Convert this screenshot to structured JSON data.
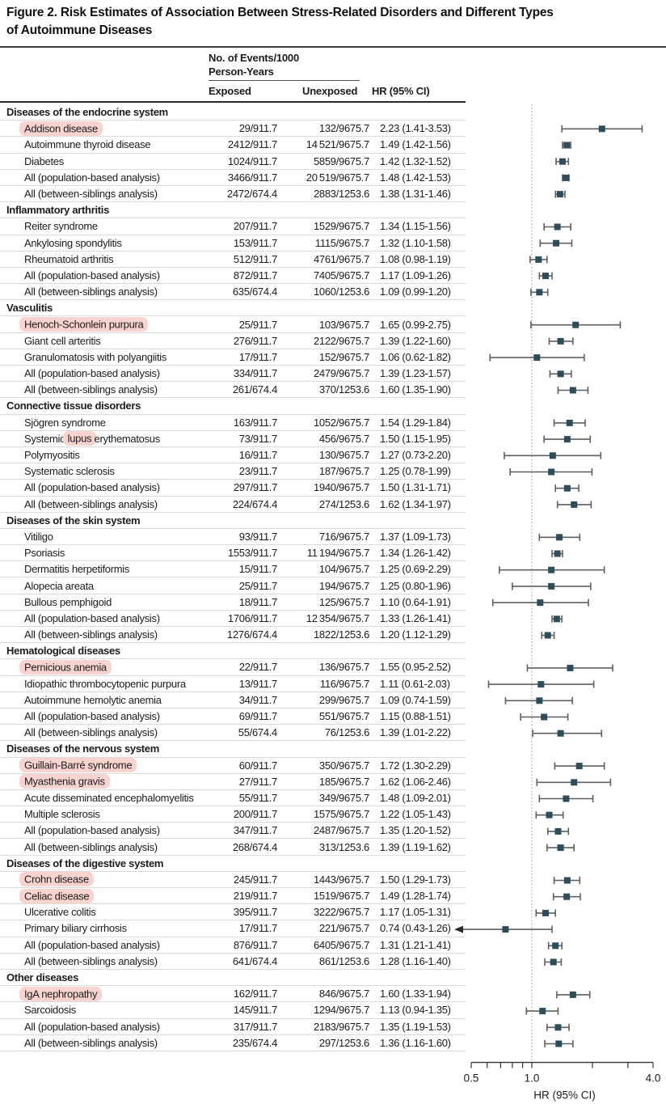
{
  "figure": {
    "title_line1": "Figure 2. Risk Estimates of Association Between Stress-Related Disorders and Different Types",
    "title_line2": "of Autoimmune Diseases"
  },
  "table_header": {
    "events_group_line1": "No. of Events/1000",
    "events_group_line2": "Person-Years",
    "exposed": "Exposed",
    "unexposed": "Unexposed",
    "hr": "HR (95% CI)"
  },
  "axis": {
    "xlabel": "HR (95% CI)",
    "scale": "log",
    "min": 0.5,
    "max": 4.0,
    "reference": 1.0,
    "ticks": [
      {
        "v": 0.5,
        "label": "0.5"
      },
      {
        "v": 0.6
      },
      {
        "v": 0.7
      },
      {
        "v": 0.8
      },
      {
        "v": 0.9
      },
      {
        "v": 1.0,
        "label": "1.0"
      },
      {
        "v": 2.0
      },
      {
        "v": 3.0
      },
      {
        "v": 4.0,
        "label": "4.0"
      }
    ]
  },
  "colors": {
    "marker": "#2e4d5a",
    "whisker": "#5f5f5f",
    "arrow": "#2a2a2a",
    "reference_line": "#9a9a9a",
    "axis": "#333333",
    "highlight": "#f8d3cf",
    "row_rule": "#dadada",
    "text": "#1c1c1c"
  },
  "chart_data": {
    "type": "forest",
    "sections": [
      {
        "title": "Diseases of the endocrine system",
        "rows": [
          {
            "label": "Addison disease",
            "highlight": true,
            "exposed": "29/911.7",
            "unexposed": "132/9675.7",
            "hr_text": "2.23 (1.41-3.53)",
            "hr": 2.23,
            "lo": 1.41,
            "hi": 3.53
          },
          {
            "label": "Autoimmune thyroid disease",
            "exposed": "2412/911.7",
            "unexposed": "14 521/9675.7",
            "hr_text": "1.49 (1.42-1.56)",
            "hr": 1.49,
            "lo": 1.42,
            "hi": 1.56
          },
          {
            "label": "Diabetes",
            "exposed": "1024/911.7",
            "unexposed": "5859/9675.7",
            "hr_text": "1.42 (1.32-1.52)",
            "hr": 1.42,
            "lo": 1.32,
            "hi": 1.52
          },
          {
            "label": "All (population-based analysis)",
            "exposed": "3466/911.7",
            "unexposed": "20 519/9675.7",
            "hr_text": "1.48 (1.42-1.53)",
            "hr": 1.48,
            "lo": 1.42,
            "hi": 1.53
          },
          {
            "label": "All (between-siblings analysis)",
            "exposed": "2472/674.4",
            "unexposed": "2883/1253.6",
            "hr_text": "1.38 (1.31-1.46)",
            "hr": 1.38,
            "lo": 1.31,
            "hi": 1.46
          }
        ]
      },
      {
        "title": "Inflammatory arthritis",
        "rows": [
          {
            "label": "Reiter syndrome",
            "exposed": "207/911.7",
            "unexposed": "1529/9675.7",
            "hr_text": "1.34 (1.15-1.56)",
            "hr": 1.34,
            "lo": 1.15,
            "hi": 1.56
          },
          {
            "label": "Ankylosing spondylitis",
            "exposed": "153/911.7",
            "unexposed": "1115/9675.7",
            "hr_text": "1.32 (1.10-1.58)",
            "hr": 1.32,
            "lo": 1.1,
            "hi": 1.58
          },
          {
            "label": "Rheumatoid arthritis",
            "exposed": "512/911.7",
            "unexposed": "4761/9675.7",
            "hr_text": "1.08 (0.98-1.19)",
            "hr": 1.08,
            "lo": 0.98,
            "hi": 1.19
          },
          {
            "label": "All (population-based analysis)",
            "exposed": "872/911.7",
            "unexposed": "7405/9675.7",
            "hr_text": "1.17 (1.09-1.26)",
            "hr": 1.17,
            "lo": 1.09,
            "hi": 1.26
          },
          {
            "label": "All (between-siblings analysis)",
            "exposed": "635/674.4",
            "unexposed": "1060/1253.6",
            "hr_text": "1.09 (0.99-1.20)",
            "hr": 1.09,
            "lo": 0.99,
            "hi": 1.2
          }
        ]
      },
      {
        "title": "Vasculitis",
        "rows": [
          {
            "label": "Henoch-Schonlein purpura",
            "highlight": true,
            "exposed": "25/911.7",
            "unexposed": "103/9675.7",
            "hr_text": "1.65 (0.99-2.75)",
            "hr": 1.65,
            "lo": 0.99,
            "hi": 2.75
          },
          {
            "label": "Giant cell arteritis",
            "exposed": "276/911.7",
            "unexposed": "2122/9675.7",
            "hr_text": "1.39 (1.22-1.60)",
            "hr": 1.39,
            "lo": 1.22,
            "hi": 1.6
          },
          {
            "label": "Granulomatosis with polyangiitis",
            "exposed": "17/911.7",
            "unexposed": "152/9675.7",
            "hr_text": "1.06 (0.62-1.82)",
            "hr": 1.06,
            "lo": 0.62,
            "hi": 1.82
          },
          {
            "label": "All (population-based analysis)",
            "exposed": "334/911.7",
            "unexposed": "2479/9675.7",
            "hr_text": "1.39 (1.23-1.57)",
            "hr": 1.39,
            "lo": 1.23,
            "hi": 1.57
          },
          {
            "label": "All (between-siblings analysis)",
            "exposed": "261/674.4",
            "unexposed": "370/1253.6",
            "hr_text": "1.60 (1.35-1.90)",
            "hr": 1.6,
            "lo": 1.35,
            "hi": 1.9
          }
        ]
      },
      {
        "title": "Connective tissue disorders",
        "rows": [
          {
            "label": "Sjögren syndrome",
            "exposed": "163/911.7",
            "unexposed": "1052/9675.7",
            "hr_text": "1.54 (1.29-1.84)",
            "hr": 1.54,
            "lo": 1.29,
            "hi": 1.84
          },
          {
            "label": "Systemic lupus erythematosus",
            "highlight_word": "lupus",
            "exposed": "73/911.7",
            "unexposed": "456/9675.7",
            "hr_text": "1.50 (1.15-1.95)",
            "hr": 1.5,
            "lo": 1.15,
            "hi": 1.95
          },
          {
            "label": "Polymyositis",
            "exposed": "16/911.7",
            "unexposed": "130/9675.7",
            "hr_text": "1.27 (0.73-2.20)",
            "hr": 1.27,
            "lo": 0.73,
            "hi": 2.2
          },
          {
            "label": "Systematic sclerosis",
            "exposed": "23/911.7",
            "unexposed": "187/9675.7",
            "hr_text": "1.25 (0.78-1.99)",
            "hr": 1.25,
            "lo": 0.78,
            "hi": 1.99
          },
          {
            "label": "All (population-based analysis)",
            "exposed": "297/911.7",
            "unexposed": "1940/9675.7",
            "hr_text": "1.50 (1.31-1.71)",
            "hr": 1.5,
            "lo": 1.31,
            "hi": 1.71
          },
          {
            "label": "All (between-siblings analysis)",
            "exposed": "224/674.4",
            "unexposed": "274/1253.6",
            "hr_text": "1.62 (1.34-1.97)",
            "hr": 1.62,
            "lo": 1.34,
            "hi": 1.97
          }
        ]
      },
      {
        "title": "Diseases of the skin system",
        "rows": [
          {
            "label": "Vitiligo",
            "exposed": "93/911.7",
            "unexposed": "716/9675.7",
            "hr_text": "1.37 (1.09-1.73)",
            "hr": 1.37,
            "lo": 1.09,
            "hi": 1.73
          },
          {
            "label": "Psoriasis",
            "exposed": "1553/911.7",
            "unexposed": "11 194/9675.7",
            "hr_text": "1.34 (1.26-1.42)",
            "hr": 1.34,
            "lo": 1.26,
            "hi": 1.42
          },
          {
            "label": "Dermatitis herpetiformis",
            "exposed": "15/911.7",
            "unexposed": "104/9675.7",
            "hr_text": "1.25 (0.69-2.29)",
            "hr": 1.25,
            "lo": 0.69,
            "hi": 2.29
          },
          {
            "label": "Alopecia areata",
            "exposed": "25/911.7",
            "unexposed": "194/9675.7",
            "hr_text": "1.25 (0.80-1.96)",
            "hr": 1.25,
            "lo": 0.8,
            "hi": 1.96
          },
          {
            "label": "Bullous pemphigoid",
            "exposed": "18/911.7",
            "unexposed": "125/9675.7",
            "hr_text": "1.10 (0.64-1.91)",
            "hr": 1.1,
            "lo": 0.64,
            "hi": 1.91
          },
          {
            "label": "All (population-based analysis)",
            "exposed": "1706/911.7",
            "unexposed": "12 354/9675.7",
            "hr_text": "1.33 (1.26-1.41)",
            "hr": 1.33,
            "lo": 1.26,
            "hi": 1.41
          },
          {
            "label": "All (between-siblings analysis)",
            "exposed": "1276/674.4",
            "unexposed": "1822/1253.6",
            "hr_text": "1.20 (1.12-1.29)",
            "hr": 1.2,
            "lo": 1.12,
            "hi": 1.29
          }
        ]
      },
      {
        "title": "Hematological diseases",
        "rows": [
          {
            "label": "Pernicious anemia",
            "highlight": true,
            "exposed": "22/911.7",
            "unexposed": "136/9675.7",
            "hr_text": "1.55 (0.95-2.52)",
            "hr": 1.55,
            "lo": 0.95,
            "hi": 2.52
          },
          {
            "label": "Idiopathic thrombocytopenic purpura",
            "exposed": "13/911.7",
            "unexposed": "116/9675.7",
            "hr_text": "1.11 (0.61-2.03)",
            "hr": 1.11,
            "lo": 0.61,
            "hi": 2.03
          },
          {
            "label": "Autoimmune hemolytic anemia",
            "exposed": "34/911.7",
            "unexposed": "299/9675.7",
            "hr_text": "1.09 (0.74-1.59)",
            "hr": 1.09,
            "lo": 0.74,
            "hi": 1.59
          },
          {
            "label": "All (population-based analysis)",
            "exposed": "69/911.7",
            "unexposed": "551/9675.7",
            "hr_text": "1.15 (0.88-1.51)",
            "hr": 1.15,
            "lo": 0.88,
            "hi": 1.51
          },
          {
            "label": "All (between-siblings analysis)",
            "exposed": "55/674.4",
            "unexposed": "76/1253.6",
            "hr_text": "1.39 (1.01-2.22)",
            "hr": 1.39,
            "lo": 1.01,
            "hi": 2.22
          }
        ]
      },
      {
        "title": "Diseases of the nervous system",
        "rows": [
          {
            "label": "Guillain-Barré syndrome",
            "highlight": true,
            "exposed": "60/911.7",
            "unexposed": "350/9675.7",
            "hr_text": "1.72 (1.30-2.29)",
            "hr": 1.72,
            "lo": 1.3,
            "hi": 2.29
          },
          {
            "label": "Myasthenia gravis",
            "highlight": true,
            "exposed": "27/911.7",
            "unexposed": "185/9675.7",
            "hr_text": "1.62 (1.06-2.46)",
            "hr": 1.62,
            "lo": 1.06,
            "hi": 2.46
          },
          {
            "label": "Acute disseminated encephalomyelitis",
            "exposed": "55/911.7",
            "unexposed": "349/9675.7",
            "hr_text": "1.48 (1.09-2.01)",
            "hr": 1.48,
            "lo": 1.09,
            "hi": 2.01
          },
          {
            "label": "Multiple sclerosis",
            "exposed": "200/911.7",
            "unexposed": "1575/9675.7",
            "hr_text": "1.22 (1.05-1.43)",
            "hr": 1.22,
            "lo": 1.05,
            "hi": 1.43
          },
          {
            "label": "All (population-based analysis)",
            "exposed": "347/911.7",
            "unexposed": "2487/9675.7",
            "hr_text": "1.35 (1.20-1.52)",
            "hr": 1.35,
            "lo": 1.2,
            "hi": 1.52
          },
          {
            "label": "All (between-siblings analysis)",
            "exposed": "268/674.4",
            "unexposed": "313/1253.6",
            "hr_text": "1.39 (1.19-1.62)",
            "hr": 1.39,
            "lo": 1.19,
            "hi": 1.62
          }
        ]
      },
      {
        "title": "Diseases of the digestive system",
        "rows": [
          {
            "label": "Crohn disease",
            "highlight": true,
            "exposed": "245/911.7",
            "unexposed": "1443/9675.7",
            "hr_text": "1.50 (1.29-1.73)",
            "hr": 1.5,
            "lo": 1.29,
            "hi": 1.73
          },
          {
            "label": "Celiac disease",
            "highlight": true,
            "exposed": "219/911.7",
            "unexposed": "1519/9675.7",
            "hr_text": "1.49 (1.28-1.74)",
            "hr": 1.49,
            "lo": 1.28,
            "hi": 1.74
          },
          {
            "label": "Ulcerative colitis",
            "exposed": "395/911.7",
            "unexposed": "3222/9675.7",
            "hr_text": "1.17 (1.05-1.31)",
            "hr": 1.17,
            "lo": 1.05,
            "hi": 1.31
          },
          {
            "label": "Primary biliary cirrhosis",
            "exposed": "17/911.7",
            "unexposed": "221/9675.7",
            "hr_text": "0.74 (0.43-1.26)",
            "hr": 0.74,
            "lo": 0.43,
            "hi": 1.26,
            "arrow_low": true
          },
          {
            "label": "All (population-based analysis)",
            "exposed": "876/911.7",
            "unexposed": "6405/9675.7",
            "hr_text": "1.31 (1.21-1.41)",
            "hr": 1.31,
            "lo": 1.21,
            "hi": 1.41
          },
          {
            "label": "All (between-siblings analysis)",
            "exposed": "641/674.4",
            "unexposed": "861/1253.6",
            "hr_text": "1.28 (1.16-1.40)",
            "hr": 1.28,
            "lo": 1.16,
            "hi": 1.4
          }
        ]
      },
      {
        "title": "Other diseases",
        "rows": [
          {
            "label": "IgA nephropathy",
            "highlight": true,
            "exposed": "162/911.7",
            "unexposed": "846/9675.7",
            "hr_text": "1.60 (1.33-1.94)",
            "hr": 1.6,
            "lo": 1.33,
            "hi": 1.94
          },
          {
            "label": "Sarcoidosis",
            "exposed": "145/911.7",
            "unexposed": "1294/9675.7",
            "hr_text": "1.13 (0.94-1.35)",
            "hr": 1.13,
            "lo": 0.94,
            "hi": 1.35
          },
          {
            "label": "All (population-based analysis)",
            "exposed": "317/911.7",
            "unexposed": "2183/9675.7",
            "hr_text": "1.35 (1.19-1.53)",
            "hr": 1.35,
            "lo": 1.19,
            "hi": 1.53
          },
          {
            "label": "All (between-siblings analysis)",
            "exposed": "235/674.4",
            "unexposed": "297/1253.6",
            "hr_text": "1.36 (1.16-1.60)",
            "hr": 1.36,
            "lo": 1.16,
            "hi": 1.6
          }
        ]
      }
    ]
  }
}
